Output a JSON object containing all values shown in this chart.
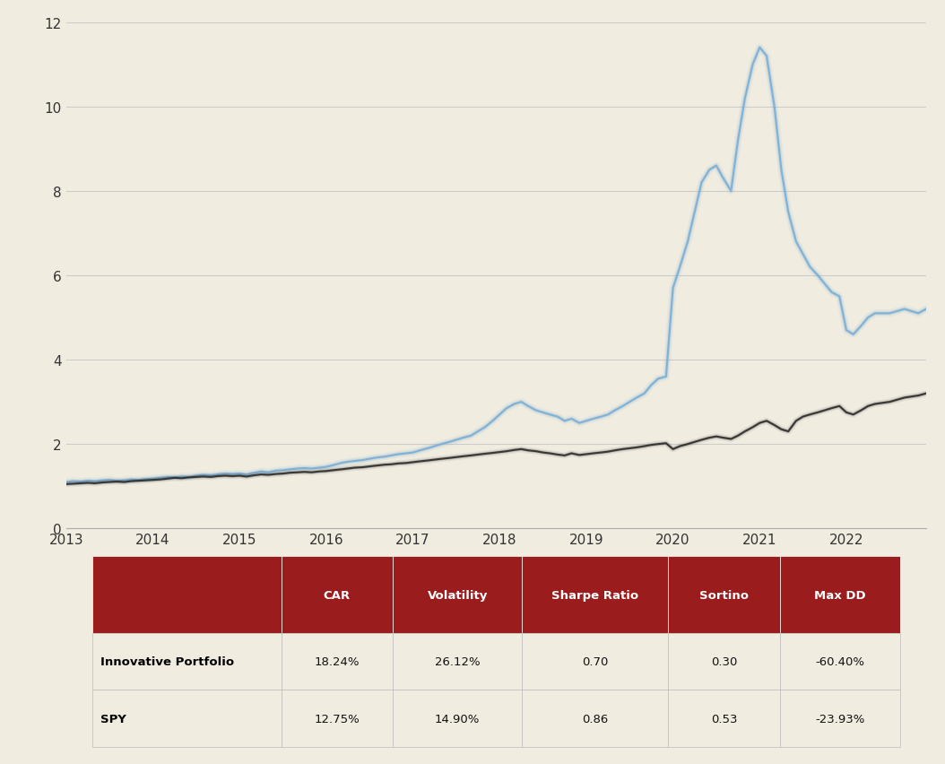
{
  "background_color": "#f0ece0",
  "chart_bg": "#f0ece0",
  "title": "",
  "x_years": [
    2013,
    2014,
    2015,
    2016,
    2017,
    2018,
    2019,
    2020,
    2021,
    2022
  ],
  "ylim": [
    0,
    12
  ],
  "yticks": [
    0,
    2,
    4,
    6,
    8,
    10,
    12
  ],
  "innovative_color": "#7aadd4",
  "spy_color": "#2c2c2c",
  "innovative_label": "Innovative Portfolio",
  "spy_label": "SPY",
  "innovative_data_x": [
    0,
    0.08,
    0.17,
    0.25,
    0.33,
    0.42,
    0.5,
    0.58,
    0.67,
    0.75,
    0.83,
    0.92,
    1.0,
    1.08,
    1.17,
    1.25,
    1.33,
    1.42,
    1.5,
    1.58,
    1.67,
    1.75,
    1.83,
    1.92,
    2.0,
    2.08,
    2.17,
    2.25,
    2.33,
    2.42,
    2.5,
    2.58,
    2.67,
    2.75,
    2.83,
    2.92,
    3.0,
    3.08,
    3.17,
    3.25,
    3.33,
    3.42,
    3.5,
    3.58,
    3.67,
    3.75,
    3.83,
    3.92,
    4.0,
    4.08,
    4.17,
    4.25,
    4.33,
    4.42,
    4.5,
    4.58,
    4.67,
    4.75,
    4.83,
    4.92,
    5.0,
    5.08,
    5.17,
    5.25,
    5.33,
    5.42,
    5.5,
    5.58,
    5.67,
    5.75,
    5.83,
    5.92,
    6.0,
    6.08,
    6.17,
    6.25,
    6.33,
    6.42,
    6.5,
    6.58,
    6.67,
    6.75,
    6.83,
    6.92,
    7.0,
    7.08,
    7.17,
    7.25,
    7.33,
    7.42,
    7.5,
    7.58,
    7.67,
    7.75,
    7.83,
    7.92,
    8.0,
    8.08,
    8.17,
    8.25,
    8.33,
    8.42,
    8.5,
    8.58,
    8.67,
    8.75,
    8.83,
    8.92,
    9.0,
    9.08,
    9.17,
    9.25,
    9.33,
    9.5,
    9.67,
    9.83,
    9.92
  ],
  "innovative_data_y": [
    1.1,
    1.12,
    1.11,
    1.13,
    1.12,
    1.14,
    1.15,
    1.13,
    1.14,
    1.16,
    1.15,
    1.17,
    1.18,
    1.2,
    1.22,
    1.21,
    1.23,
    1.22,
    1.25,
    1.27,
    1.26,
    1.28,
    1.3,
    1.29,
    1.3,
    1.28,
    1.32,
    1.35,
    1.33,
    1.37,
    1.38,
    1.4,
    1.42,
    1.43,
    1.42,
    1.44,
    1.46,
    1.5,
    1.55,
    1.58,
    1.6,
    1.62,
    1.65,
    1.68,
    1.7,
    1.73,
    1.76,
    1.78,
    1.8,
    1.85,
    1.9,
    1.95,
    2.0,
    2.05,
    2.1,
    2.15,
    2.2,
    2.3,
    2.4,
    2.55,
    2.7,
    2.85,
    2.95,
    3.0,
    2.9,
    2.8,
    2.75,
    2.7,
    2.65,
    2.55,
    2.6,
    2.5,
    2.55,
    2.6,
    2.65,
    2.7,
    2.8,
    2.9,
    3.0,
    3.1,
    3.2,
    3.4,
    3.55,
    3.6,
    5.7,
    6.2,
    6.8,
    7.5,
    8.2,
    8.5,
    8.6,
    8.3,
    8.0,
    9.2,
    10.2,
    11.0,
    11.4,
    11.2,
    10.0,
    8.5,
    7.5,
    6.8,
    6.5,
    6.2,
    6.0,
    5.8,
    5.6,
    5.5,
    4.7,
    4.6,
    4.8,
    5.0,
    5.1,
    5.1,
    5.2,
    5.1,
    5.2
  ],
  "spy_data_x": [
    0,
    0.08,
    0.17,
    0.25,
    0.33,
    0.42,
    0.5,
    0.58,
    0.67,
    0.75,
    0.83,
    0.92,
    1.0,
    1.08,
    1.17,
    1.25,
    1.33,
    1.42,
    1.5,
    1.58,
    1.67,
    1.75,
    1.83,
    1.92,
    2.0,
    2.08,
    2.17,
    2.25,
    2.33,
    2.42,
    2.5,
    2.58,
    2.67,
    2.75,
    2.83,
    2.92,
    3.0,
    3.08,
    3.17,
    3.25,
    3.33,
    3.42,
    3.5,
    3.58,
    3.67,
    3.75,
    3.83,
    3.92,
    4.0,
    4.08,
    4.17,
    4.25,
    4.33,
    4.42,
    4.5,
    4.58,
    4.67,
    4.75,
    4.83,
    4.92,
    5.0,
    5.08,
    5.17,
    5.25,
    5.33,
    5.42,
    5.5,
    5.58,
    5.67,
    5.75,
    5.83,
    5.92,
    6.0,
    6.08,
    6.17,
    6.25,
    6.33,
    6.42,
    6.5,
    6.58,
    6.67,
    6.75,
    6.83,
    6.92,
    7.0,
    7.08,
    7.17,
    7.25,
    7.33,
    7.42,
    7.5,
    7.58,
    7.67,
    7.75,
    7.83,
    7.92,
    8.0,
    8.08,
    8.17,
    8.25,
    8.33,
    8.42,
    8.5,
    8.58,
    8.67,
    8.75,
    8.83,
    8.92,
    9.0,
    9.08,
    9.17,
    9.25,
    9.33,
    9.5,
    9.67,
    9.83,
    9.92
  ],
  "spy_data_y": [
    1.05,
    1.06,
    1.07,
    1.08,
    1.07,
    1.09,
    1.1,
    1.11,
    1.1,
    1.12,
    1.13,
    1.14,
    1.15,
    1.16,
    1.18,
    1.2,
    1.19,
    1.21,
    1.22,
    1.23,
    1.22,
    1.24,
    1.25,
    1.24,
    1.25,
    1.23,
    1.26,
    1.28,
    1.27,
    1.29,
    1.3,
    1.32,
    1.33,
    1.34,
    1.33,
    1.35,
    1.36,
    1.38,
    1.4,
    1.42,
    1.44,
    1.45,
    1.47,
    1.49,
    1.51,
    1.52,
    1.54,
    1.55,
    1.57,
    1.59,
    1.61,
    1.63,
    1.65,
    1.67,
    1.69,
    1.71,
    1.73,
    1.75,
    1.77,
    1.79,
    1.81,
    1.83,
    1.86,
    1.88,
    1.85,
    1.83,
    1.8,
    1.78,
    1.75,
    1.73,
    1.78,
    1.74,
    1.76,
    1.78,
    1.8,
    1.82,
    1.85,
    1.88,
    1.9,
    1.92,
    1.95,
    1.98,
    2.0,
    2.02,
    1.88,
    1.95,
    2.0,
    2.05,
    2.1,
    2.15,
    2.18,
    2.15,
    2.12,
    2.2,
    2.3,
    2.4,
    2.5,
    2.55,
    2.45,
    2.35,
    2.3,
    2.55,
    2.65,
    2.7,
    2.75,
    2.8,
    2.85,
    2.9,
    2.75,
    2.7,
    2.8,
    2.9,
    2.95,
    3.0,
    3.1,
    3.15,
    3.2
  ],
  "table_header_color": "#9b1c1c",
  "table_header_text_color": "#ffffff",
  "table_row_label_color": "#000000",
  "table_data": {
    "headers": [
      "",
      "CAR",
      "Volatility",
      "Sharpe Ratio",
      "Sortino",
      "Max DD"
    ],
    "rows": [
      [
        "Innovative Portfolio",
        "18.24%",
        "26.12%",
        "0.70",
        "0.30",
        "-60.40%"
      ],
      [
        "SPY",
        "12.75%",
        "14.90%",
        "0.86",
        "0.53",
        "-23.93%"
      ]
    ]
  }
}
